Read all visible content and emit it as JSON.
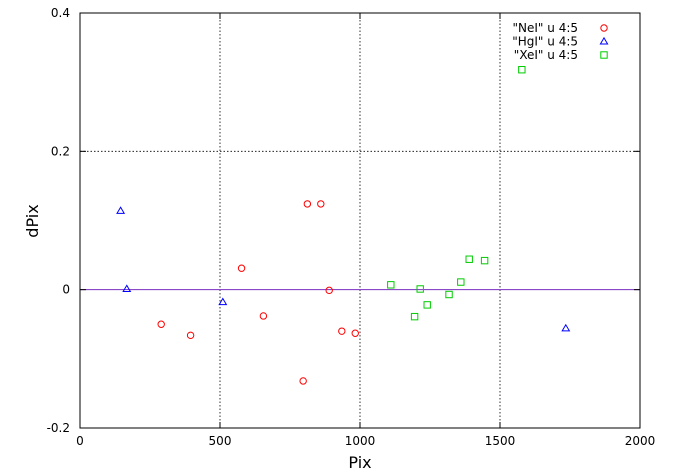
{
  "chart_data": {
    "type": "scatter",
    "xlabel": "Pix",
    "ylabel": "dPix",
    "xlim": [
      0,
      2000
    ],
    "ylim": [
      -0.2,
      0.4
    ],
    "xticks": [
      0,
      500,
      1000,
      1500,
      2000
    ],
    "yticks": [
      -0.2,
      0,
      0.2,
      0.4
    ],
    "xtick_labels": [
      "0",
      "500",
      "1000",
      "1500",
      "2000"
    ],
    "ytick_labels": [
      "-0.2",
      "0",
      "0.2",
      "0.4"
    ],
    "grid": "dotted at x=500, x=1000, x=1500 and y=0.2",
    "reference_line": {
      "y": 0,
      "color": "#7b2fbf"
    },
    "legend_position": "top-right",
    "series": [
      {
        "name": "\"NeI\" u 4:5",
        "marker": "circle",
        "color": "#ff0000",
        "x": [
          290,
          395,
          577,
          655,
          797,
          812,
          860,
          890,
          935,
          983
        ],
        "y": [
          -0.05,
          -0.066,
          0.031,
          -0.038,
          -0.132,
          0.124,
          0.124,
          -0.001,
          -0.06,
          -0.063
        ]
      },
      {
        "name": "\"HgI\" u 4:5",
        "marker": "triangle",
        "color": "#0000ff",
        "x": [
          145,
          167,
          510,
          1735
        ],
        "y": [
          0.114,
          0.001,
          -0.018,
          -0.056
        ]
      },
      {
        "name": "\"XeI\" u 4:5",
        "marker": "square",
        "color": "#00cc00",
        "x": [
          1110,
          1195,
          1215,
          1240,
          1318,
          1360,
          1390,
          1445,
          1578
        ],
        "y": [
          0.007,
          -0.039,
          0.001,
          -0.022,
          -0.007,
          0.011,
          0.044,
          0.042,
          0.318
        ]
      }
    ]
  }
}
